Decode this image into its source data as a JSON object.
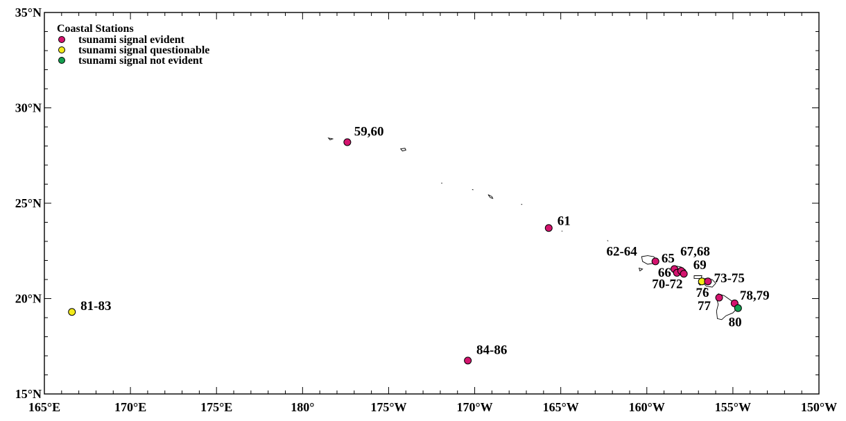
{
  "map": {
    "lon_min": 165,
    "lon_max": 210,
    "lat_min": 15,
    "lat_max": 35,
    "lat_ticks": [
      {
        "value": 35,
        "label": "35°N"
      },
      {
        "value": 30,
        "label": "30°N"
      },
      {
        "value": 25,
        "label": "25°N"
      },
      {
        "value": 20,
        "label": "20°N"
      },
      {
        "value": 15,
        "label": "15°N"
      }
    ],
    "lon_ticks": [
      {
        "value": 165,
        "label": "165°E"
      },
      {
        "value": 170,
        "label": "170°E"
      },
      {
        "value": 175,
        "label": "175°E"
      },
      {
        "value": 180,
        "label": "180°"
      },
      {
        "value": 185,
        "label": "175°W"
      },
      {
        "value": 190,
        "label": "170°W"
      },
      {
        "value": 195,
        "label": "165°W"
      },
      {
        "value": 200,
        "label": "160°W"
      },
      {
        "value": 205,
        "label": "155°W"
      },
      {
        "value": 210,
        "label": "150°W"
      }
    ],
    "legend": {
      "title": "Coastal Stations",
      "items": [
        {
          "label": "tsunami signal evident",
          "color": "#d4146e"
        },
        {
          "label": "tsunami signal questionable",
          "color": "#f2ea1a"
        },
        {
          "label": "tsunami signal not evident",
          "color": "#14a050"
        }
      ]
    },
    "stations": [
      {
        "lon": 182.6,
        "lat": 28.2,
        "category": "evident"
      },
      {
        "lon": 194.3,
        "lat": 23.7,
        "category": "evident"
      },
      {
        "lon": 200.5,
        "lat": 21.95,
        "category": "evident"
      },
      {
        "lon": 201.6,
        "lat": 21.55,
        "category": "evident"
      },
      {
        "lon": 201.75,
        "lat": 21.35,
        "category": "evident"
      },
      {
        "lon": 202.0,
        "lat": 21.45,
        "category": "evident"
      },
      {
        "lon": 202.15,
        "lat": 21.3,
        "category": "evident"
      },
      {
        "lon": 203.2,
        "lat": 20.9,
        "category": "questionable"
      },
      {
        "lon": 203.55,
        "lat": 20.9,
        "category": "evident"
      },
      {
        "lon": 204.2,
        "lat": 20.05,
        "category": "evident"
      },
      {
        "lon": 205.1,
        "lat": 19.75,
        "category": "evident"
      },
      {
        "lon": 205.3,
        "lat": 19.5,
        "category": "not_evident"
      },
      {
        "lon": 166.6,
        "lat": 19.3,
        "category": "questionable"
      },
      {
        "lon": 189.6,
        "lat": 16.75,
        "category": "evident"
      }
    ],
    "station_labels": [
      {
        "text": "59,60",
        "lon": 183.0,
        "lat": 28.55
      },
      {
        "text": "61",
        "lon": 194.8,
        "lat": 23.85
      },
      {
        "text": "62-64",
        "lon": 197.65,
        "lat": 22.25
      },
      {
        "text": "65",
        "lon": 200.85,
        "lat": 21.9
      },
      {
        "text": "67,68",
        "lon": 201.95,
        "lat": 22.25
      },
      {
        "text": "69",
        "lon": 202.7,
        "lat": 21.55
      },
      {
        "text": "66",
        "lon": 200.65,
        "lat": 21.15
      },
      {
        "text": "70-72",
        "lon": 200.3,
        "lat": 20.55
      },
      {
        "text": "73-75",
        "lon": 203.9,
        "lat": 20.85
      },
      {
        "text": "76",
        "lon": 202.85,
        "lat": 20.1
      },
      {
        "text": "78,79",
        "lon": 205.4,
        "lat": 19.95
      },
      {
        "text": "77",
        "lon": 202.95,
        "lat": 19.4
      },
      {
        "text": "80",
        "lon": 204.75,
        "lat": 18.55
      },
      {
        "text": "81-83",
        "lon": 167.1,
        "lat": 19.4
      },
      {
        "text": "84-86",
        "lon": 190.1,
        "lat": 17.1
      }
    ]
  }
}
